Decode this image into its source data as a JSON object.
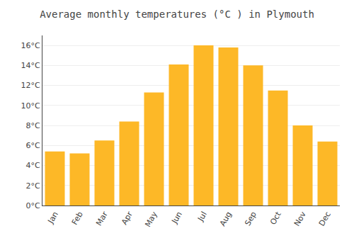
{
  "chart_data": {
    "type": "bar",
    "title": "Average monthly temperatures (°C ) in Plymouth",
    "categories": [
      "Jan",
      "Feb",
      "Mar",
      "Apr",
      "May",
      "Jun",
      "Jul",
      "Aug",
      "Sep",
      "Oct",
      "Nov",
      "Dec"
    ],
    "values": [
      5.4,
      5.2,
      6.5,
      8.4,
      11.3,
      14.1,
      16.0,
      15.8,
      14.0,
      11.5,
      8.0,
      6.4
    ],
    "color": "#FDB827",
    "ylim": [
      0,
      17
    ],
    "yticks": [
      {
        "value": 0,
        "label": "0°C"
      },
      {
        "value": 2,
        "label": "2°C"
      },
      {
        "value": 4,
        "label": "4°C"
      },
      {
        "value": 6,
        "label": "6°C"
      },
      {
        "value": 8,
        "label": "8°C"
      },
      {
        "value": 10,
        "label": "10°C"
      },
      {
        "value": 12,
        "label": "12°C"
      },
      {
        "value": 14,
        "label": "14°C"
      },
      {
        "value": 16,
        "label": "16°C"
      }
    ],
    "grid": true
  }
}
